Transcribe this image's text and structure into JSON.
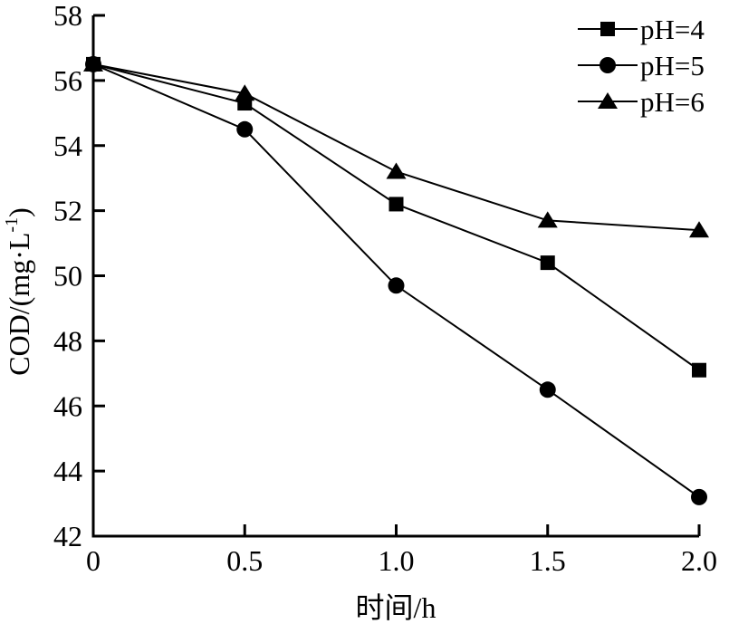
{
  "chart_data": {
    "type": "line",
    "title": "",
    "xlabel": "时间/h",
    "ylabel": "COD/(mg·L⁻¹)",
    "ylabel_parts": {
      "main": "COD/(mg·L",
      "sup": "-1",
      "close": ")"
    },
    "xlim": [
      0,
      2.0
    ],
    "ylim": [
      42,
      58
    ],
    "x_ticks": [
      "0",
      "0.5",
      "1.0",
      "1.5",
      "2.0"
    ],
    "x_tick_values": [
      0,
      0.5,
      1.0,
      1.5,
      2.0
    ],
    "y_ticks": [
      "42",
      "44",
      "46",
      "48",
      "50",
      "52",
      "54",
      "56",
      "58"
    ],
    "y_tick_values": [
      42,
      44,
      46,
      48,
      50,
      52,
      54,
      56,
      58
    ],
    "grid": false,
    "legend_position": "top-right",
    "line_color": "#000000",
    "background": "#ffffff",
    "x": [
      0,
      0.5,
      1.0,
      1.5,
      2.0
    ],
    "series": [
      {
        "name": "pH=4",
        "marker": "square",
        "values": [
          56.5,
          55.3,
          52.2,
          50.4,
          47.1
        ]
      },
      {
        "name": "pH=5",
        "marker": "circle",
        "values": [
          56.5,
          54.5,
          49.7,
          46.5,
          43.2
        ]
      },
      {
        "name": "pH=6",
        "marker": "triangle",
        "values": [
          56.5,
          55.6,
          53.2,
          51.7,
          51.4
        ]
      }
    ]
  }
}
